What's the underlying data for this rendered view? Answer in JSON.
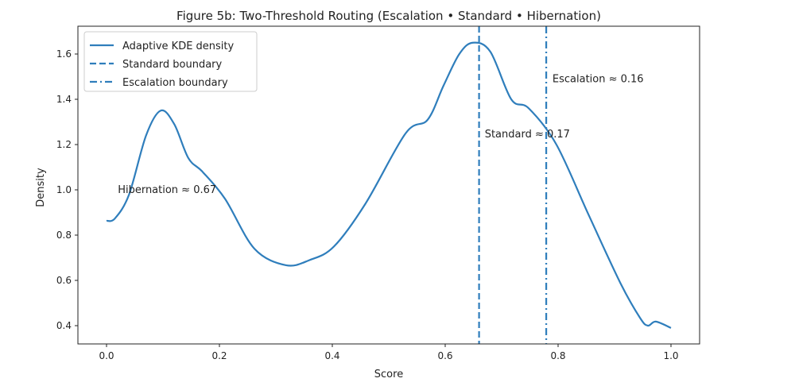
{
  "chart_data": {
    "type": "line",
    "title": "Figure 5b: Two-Threshold Routing (Escalation • Standard • Hibernation)",
    "xlabel": "Score",
    "ylabel": "Density",
    "xlim": [
      -0.05,
      1.05
    ],
    "ylim": [
      0.33,
      1.71
    ],
    "xticks": [
      0.0,
      0.2,
      0.4,
      0.6,
      0.8,
      1.0
    ],
    "xtick_labels": [
      "0.0",
      "0.2",
      "0.4",
      "0.6",
      "0.8",
      "1.0"
    ],
    "yticks": [
      0.4,
      0.6,
      0.8,
      1.0,
      1.2,
      1.4,
      1.6
    ],
    "ytick_labels": [
      "0.4",
      "0.6",
      "0.8",
      "1.0",
      "1.2",
      "1.4",
      "1.6"
    ],
    "grid": false,
    "legend_position": "top-left",
    "color": "#2f7ebc",
    "series": [
      {
        "name": "Adaptive KDE density",
        "style": "solid",
        "x": [
          0.0,
          0.015,
          0.04,
          0.07,
          0.096,
          0.12,
          0.145,
          0.17,
          0.21,
          0.262,
          0.318,
          0.36,
          0.403,
          0.459,
          0.53,
          0.569,
          0.597,
          0.625,
          0.649,
          0.68,
          0.717,
          0.748,
          0.797,
          0.854,
          0.91,
          0.945,
          0.959,
          0.973,
          1.0
        ],
        "y": [
          0.863,
          0.874,
          0.98,
          1.24,
          1.35,
          1.29,
          1.14,
          1.08,
          0.96,
          0.74,
          0.667,
          0.69,
          0.75,
          0.94,
          1.25,
          1.31,
          1.46,
          1.6,
          1.65,
          1.61,
          1.4,
          1.36,
          1.2,
          0.89,
          0.59,
          0.435,
          0.4,
          0.418,
          0.39
        ]
      }
    ],
    "vlines": [
      {
        "name": "Standard boundary",
        "x": 0.66,
        "style": "dashed"
      },
      {
        "name": "Escalation boundary",
        "x": 0.779,
        "style": "dashdot"
      }
    ],
    "annotations": [
      {
        "text": "Hibernation ≈ 0.67",
        "x": 0.02,
        "y": 1.0
      },
      {
        "text": "Standard ≈ 0.17",
        "x": 0.67,
        "y": 1.245
      },
      {
        "text": "Escalation ≈ 0.16",
        "x": 0.79,
        "y": 1.49
      }
    ]
  }
}
